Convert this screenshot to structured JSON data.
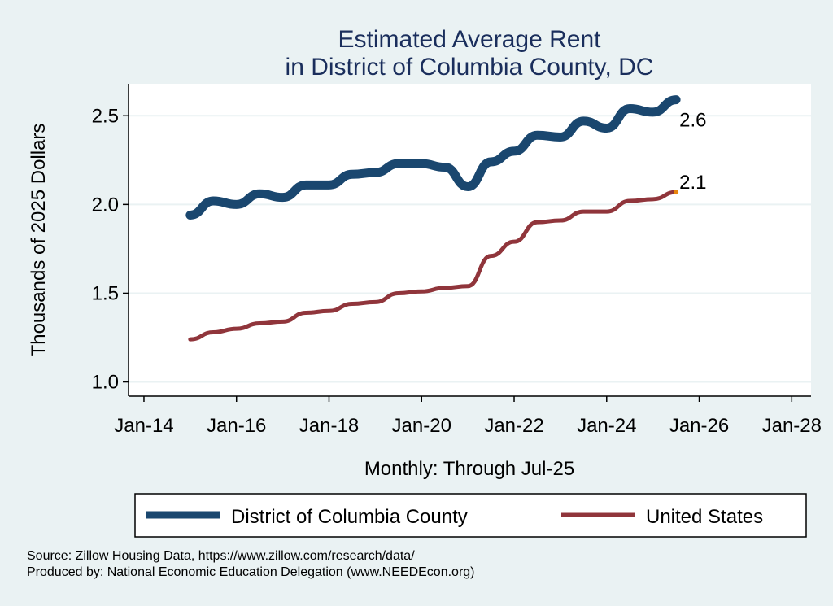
{
  "chart_data": {
    "type": "line",
    "title": [
      "Estimated Average Rent",
      "in District of Columbia County, DC"
    ],
    "xlabel": "Monthly: Through Jul-25",
    "ylabel": "Thousands of 2025 Dollars",
    "ylim": [
      0.92,
      2.68
    ],
    "xlim": [
      "2013-09",
      "2028-06"
    ],
    "yticks": [
      1.0,
      1.5,
      2.0,
      2.5
    ],
    "ytick_labels": [
      "1.0",
      "1.5",
      "2.0",
      "2.5"
    ],
    "xticks": [
      "2014-01",
      "2016-01",
      "2018-01",
      "2020-01",
      "2022-01",
      "2024-01",
      "2026-01",
      "2028-01"
    ],
    "xtick_labels": [
      "Jan-14",
      "Jan-16",
      "Jan-18",
      "Jan-20",
      "Jan-22",
      "Jan-24",
      "Jan-26",
      "Jan-28"
    ],
    "grid": true,
    "legend_placement": "bottom",
    "x": [
      "2015-01",
      "2015-07",
      "2016-01",
      "2016-07",
      "2017-01",
      "2017-07",
      "2018-01",
      "2018-07",
      "2019-01",
      "2019-07",
      "2020-01",
      "2020-07",
      "2021-01",
      "2021-07",
      "2022-01",
      "2022-07",
      "2023-01",
      "2023-07",
      "2024-01",
      "2024-07",
      "2025-01",
      "2025-07"
    ],
    "series": [
      {
        "name": "District of Columbia County",
        "color": "#1a476f",
        "values": [
          1.94,
          2.02,
          2.0,
          2.06,
          2.04,
          2.11,
          2.11,
          2.17,
          2.18,
          2.23,
          2.23,
          2.21,
          2.1,
          2.24,
          2.3,
          2.39,
          2.38,
          2.47,
          2.43,
          2.54,
          2.52,
          2.59
        ],
        "end_label": "2.6"
      },
      {
        "name": "United States",
        "color": "#90353b",
        "values": [
          1.24,
          1.28,
          1.3,
          1.33,
          1.34,
          1.39,
          1.4,
          1.44,
          1.45,
          1.5,
          1.51,
          1.53,
          1.54,
          1.71,
          1.79,
          1.9,
          1.91,
          1.96,
          1.96,
          2.02,
          2.03,
          2.07
        ],
        "end_label": "2.1",
        "end_marker_color": "#e8850c"
      }
    ],
    "source": "Source: Zillow Housing Data, https://www.zillow.com/research/data/",
    "produced_by": "Produced by: National Economic Education Delegation (www.NEEDEcon.org)"
  }
}
